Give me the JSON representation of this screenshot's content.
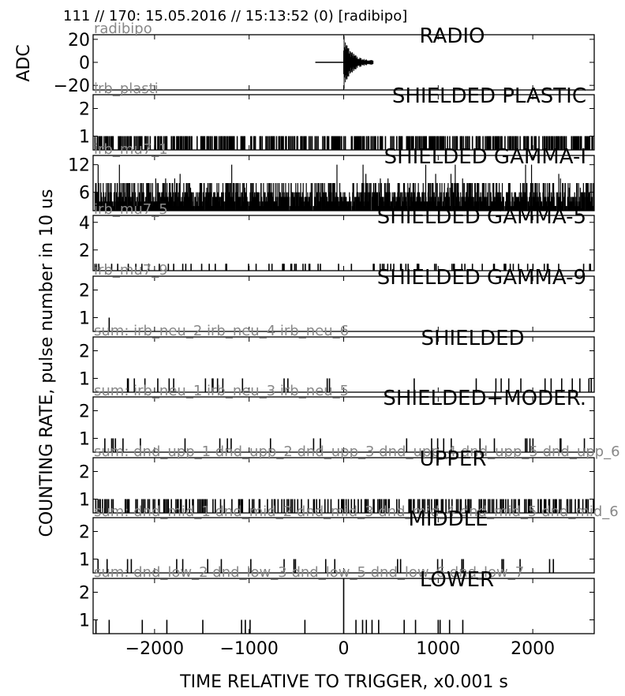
{
  "header": "111 // 170:   15.05.2016 // 15:13:52 (0)  [radibipo]",
  "y_label_top": "ADC",
  "y_label_main": "COUNTING RATE,   pulse number in 10 us",
  "x_label": "TIME RELATIVE TO TRIGGER,   x0.001 s",
  "x_ticks": [
    -2000,
    -1000,
    0,
    1000,
    2000
  ],
  "x_tick_labels": [
    "−2000",
    "−1000",
    "0",
    "1000",
    "2000"
  ],
  "chart_data": {
    "type": "line",
    "xlim": [
      -2650,
      2650
    ],
    "panels": [
      {
        "title": "RADIO",
        "source": "radibipo",
        "ylim": [
          -24,
          24
        ],
        "yticks": [
          20,
          0,
          -20
        ],
        "ytick_labels": [
          "20",
          "0",
          "−20"
        ],
        "kind": "waveform"
      },
      {
        "title": "SHIELDED PLASTIC",
        "source": "irb_plasti",
        "ylim": [
          0.5,
          2.5
        ],
        "yticks": [
          2,
          1
        ],
        "ytick_labels": [
          "2",
          "1"
        ],
        "kind": "dense",
        "baseline": 0.5,
        "values": [
          1
        ],
        "density": 0.6
      },
      {
        "title": "SHIELDED GAMMA-I",
        "source": "irb_mu7_1",
        "ylim": [
          2,
          14
        ],
        "yticks": [
          12,
          6
        ],
        "ytick_labels": [
          "12",
          "6"
        ],
        "kind": "noise",
        "baseline": 2,
        "values": [
          2,
          3,
          4,
          5,
          6,
          8
        ],
        "density": 1
      },
      {
        "title": "SHIELDED GAMMA-5",
        "source": "irb_mu7_5",
        "ylim": [
          0.5,
          4.5
        ],
        "yticks": [
          4,
          2
        ],
        "ytick_labels": [
          "4",
          "2"
        ],
        "kind": "sparse",
        "baseline": 0.5,
        "values": [
          1
        ],
        "density": 0.12
      },
      {
        "title": "SHIELDED GAMMA-9",
        "source": "irb_mu7_9",
        "ylim": [
          0.5,
          2.5
        ],
        "yticks": [
          2,
          1
        ],
        "ytick_labels": [
          "2",
          "1"
        ],
        "kind": "events",
        "baseline": 0.5,
        "events": [
          [
            -2480,
            1
          ]
        ]
      },
      {
        "title": "SHIELDED",
        "source": "sum: irb_neu_2 irb_neu_4 irb_neu_6",
        "ylim": [
          0.5,
          2.5
        ],
        "yticks": [
          2,
          1
        ],
        "ytick_labels": [
          "2",
          "1"
        ],
        "kind": "sparse",
        "baseline": 0.5,
        "values": [
          1
        ],
        "density": 0.06
      },
      {
        "title": "SHIELDED+MODER.",
        "source": "sum: irb_neu_1 irb_neu_3 irb_neu_5",
        "ylim": [
          0.5,
          2.5
        ],
        "yticks": [
          2,
          1
        ],
        "ytick_labels": [
          "2",
          "1"
        ],
        "kind": "sparse",
        "baseline": 0.5,
        "values": [
          1
        ],
        "density": 0.05
      },
      {
        "title": "UPPER",
        "source": "sum: dnd_upp_1 dnd_upp_2 dnd_upp_3 dnd_upp_4 dnd_upp_5 dnd_upp_6",
        "ylim": [
          0.5,
          2.5
        ],
        "yticks": [
          2,
          1
        ],
        "ytick_labels": [
          "2",
          "1"
        ],
        "kind": "dense",
        "baseline": 0.5,
        "values": [
          1
        ],
        "density": 0.3
      },
      {
        "title": "MIDDLE",
        "source": "sum: dnd_mid_1 dnd_mid_2 dnd_mid_3 dnd_mid_4 dnd_mid_5 dnd_mid_6",
        "ylim": [
          0.5,
          2.5
        ],
        "yticks": [
          2,
          1
        ],
        "ytick_labels": [
          "2",
          "1"
        ],
        "kind": "sparse",
        "baseline": 0.5,
        "values": [
          1
        ],
        "density": 0.03
      },
      {
        "title": "LOWER",
        "source": "sum: dnd_low_2 dnd_low_3 dnd_low_5 dnd_low_6 dnd_low_7",
        "ylim": [
          0.5,
          2.5
        ],
        "yticks": [
          2,
          1
        ],
        "ytick_labels": [
          "2",
          "1"
        ],
        "kind": "events",
        "baseline": 0.5,
        "events": [
          [
            -2620,
            1
          ],
          [
            -2480,
            1
          ],
          [
            -2130,
            1
          ],
          [
            -1870,
            1
          ],
          [
            -1490,
            1
          ],
          [
            -1080,
            1
          ],
          [
            -1040,
            1
          ],
          [
            -990,
            1
          ],
          [
            -410,
            1
          ],
          [
            0,
            2.5
          ],
          [
            130,
            1
          ],
          [
            200,
            1
          ],
          [
            240,
            1
          ],
          [
            300,
            1
          ],
          [
            370,
            1
          ],
          [
            640,
            1
          ],
          [
            760,
            1
          ],
          [
            1000,
            1
          ],
          [
            1020,
            1
          ],
          [
            1120,
            1
          ],
          [
            1260,
            1
          ]
        ]
      }
    ]
  }
}
